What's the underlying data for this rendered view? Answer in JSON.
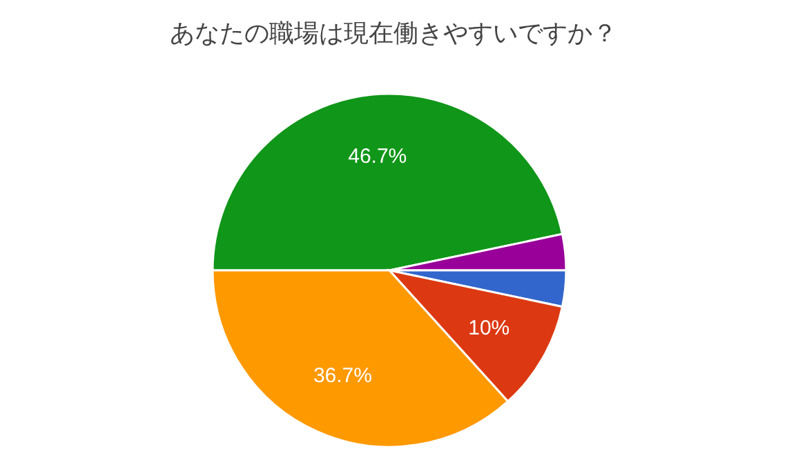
{
  "chart_data": {
    "type": "pie",
    "title": "あなたの職場は現在働きやすいですか？",
    "categories": [
      null,
      null,
      null,
      null,
      null
    ],
    "values": [
      46.7,
      3.3,
      3.3,
      10,
      36.7
    ],
    "colors": [
      "#109618",
      "#990099",
      "#3366cc",
      "#dc3912",
      "#ff9900"
    ],
    "value_labels": [
      "46.7%",
      null,
      null,
      "10%",
      "36.7%"
    ]
  }
}
